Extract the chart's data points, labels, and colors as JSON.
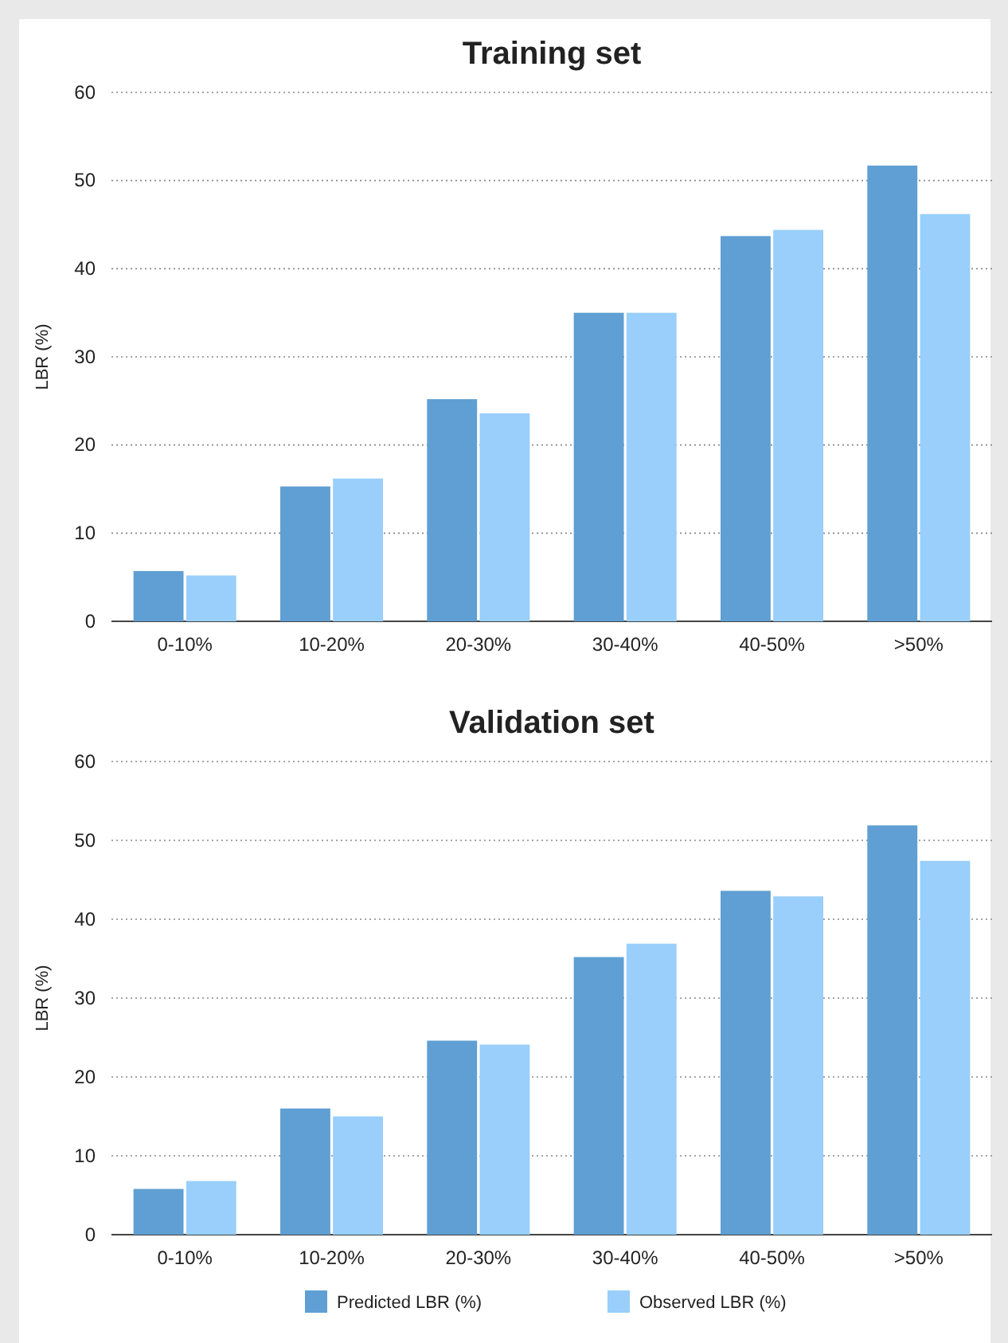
{
  "chart_data": [
    {
      "type": "bar",
      "title": "Training set",
      "ylabel": "LBR (%)",
      "categories": [
        "0-10%",
        "10-20%",
        "20-30%",
        "30-40%",
        "40-50%",
        ">50%"
      ],
      "series": [
        {
          "color": "#5f9fd3",
          "values": [
            5.7,
            15.3,
            25.2,
            35.0,
            43.7,
            51.7
          ]
        },
        {
          "color": "#99cffa",
          "values": [
            5.2,
            16.2,
            23.6,
            35.0,
            44.4,
            46.2
          ]
        }
      ],
      "ylim": [
        0,
        60
      ],
      "yticks": [
        0,
        10,
        20,
        30,
        40,
        50,
        60
      ],
      "grid": "y",
      "legend": false
    },
    {
      "type": "bar",
      "title": "Validation set",
      "ylabel": "LBR (%)",
      "categories": [
        "0-10%",
        "10-20%",
        "20-30%",
        "30-40%",
        "40-50%",
        ">50%"
      ],
      "series": [
        {
          "name": "Predicted LBR (%)",
          "color": "#5f9fd3",
          "values": [
            5.8,
            16.0,
            24.6,
            35.2,
            43.6,
            51.9
          ]
        },
        {
          "name": "Observed LBR (%)",
          "color": "#99cffa",
          "values": [
            6.8,
            15.0,
            24.1,
            36.9,
            42.9,
            47.4
          ]
        }
      ],
      "ylim": [
        0,
        60
      ],
      "yticks": [
        0,
        10,
        20,
        30,
        40,
        50,
        60
      ],
      "grid": "y",
      "legend": "bottom"
    }
  ]
}
